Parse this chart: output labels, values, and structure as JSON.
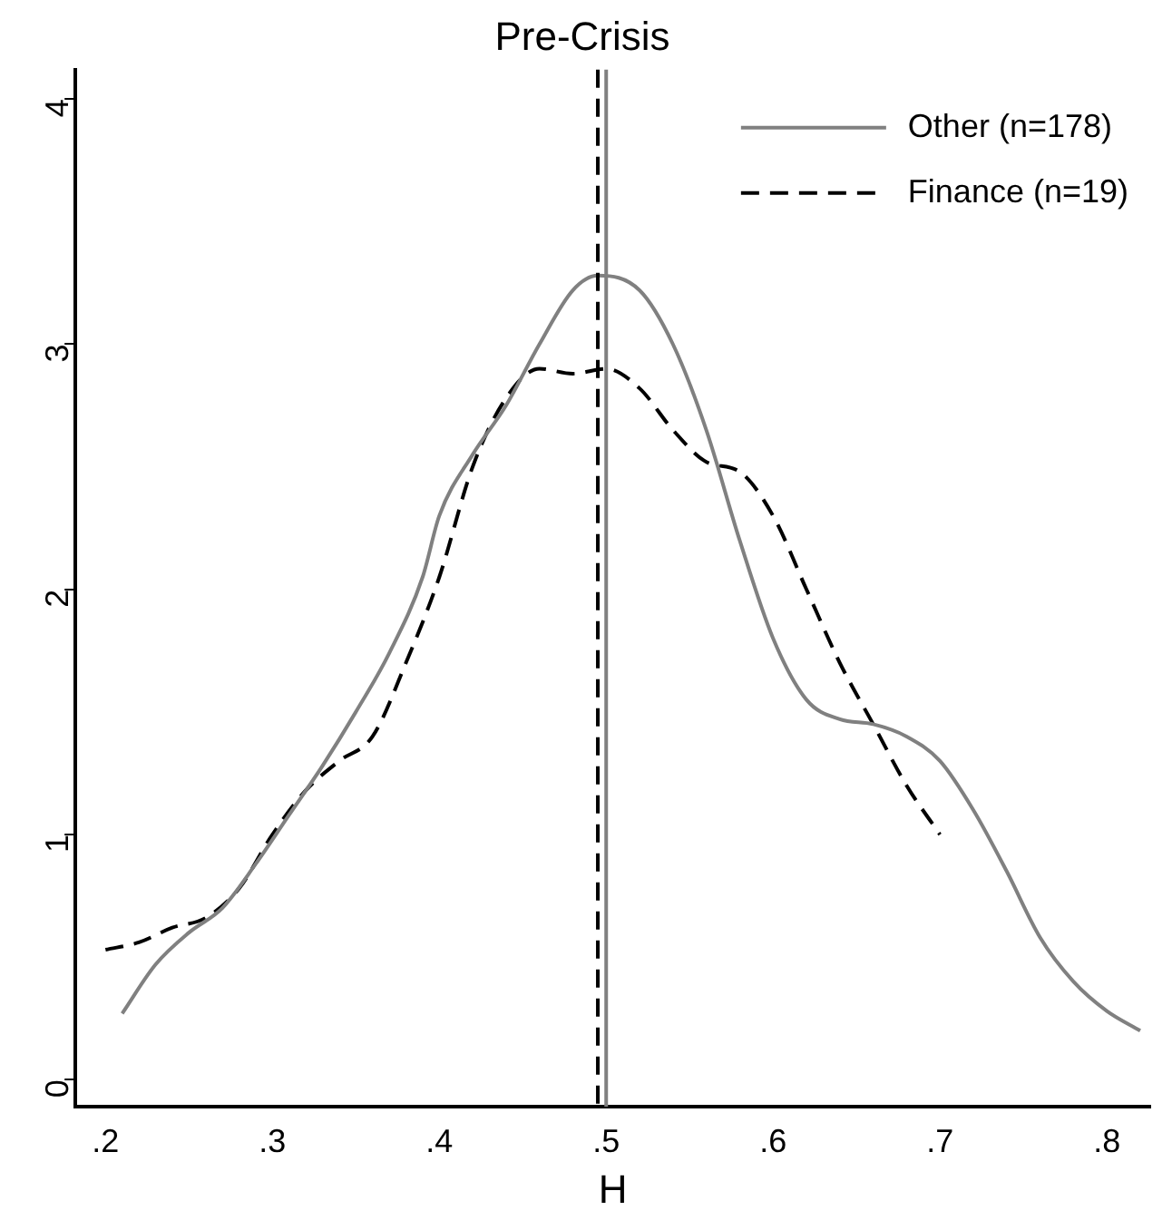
{
  "chart_data": {
    "type": "line",
    "title": "Pre-Crisis",
    "xlabel": "H",
    "xlim": [
      0.182,
      0.826
    ],
    "xticks": [
      {
        "value": 0.2,
        "label": ".2"
      },
      {
        "value": 0.3,
        "label": ".3"
      },
      {
        "value": 0.4,
        "label": ".4"
      },
      {
        "value": 0.5,
        "label": ".5"
      },
      {
        "value": 0.6,
        "label": ".6"
      },
      {
        "value": 0.7,
        "label": ".7"
      },
      {
        "value": 0.8,
        "label": ".8"
      }
    ],
    "ylim": [
      -0.11,
      4.12
    ],
    "yticks": [
      0,
      1,
      2,
      3,
      4
    ],
    "grid": false,
    "legend": "top right",
    "marker": "none",
    "series": [
      {
        "name": "Other (n=178)",
        "color": "#808080",
        "line_style": "solid",
        "x": [
          0.21,
          0.23,
          0.25,
          0.27,
          0.29,
          0.31,
          0.33,
          0.35,
          0.37,
          0.39,
          0.4,
          0.42,
          0.44,
          0.46,
          0.48,
          0.495,
          0.52,
          0.54,
          0.56,
          0.58,
          0.6,
          0.62,
          0.64,
          0.66,
          0.68,
          0.7,
          0.72,
          0.74,
          0.76,
          0.78,
          0.8,
          0.82
        ],
        "values": [
          0.27,
          0.47,
          0.6,
          0.7,
          0.88,
          1.08,
          1.28,
          1.5,
          1.74,
          2.05,
          2.3,
          2.55,
          2.75,
          3.0,
          3.22,
          3.28,
          3.22,
          3.0,
          2.65,
          2.2,
          1.8,
          1.55,
          1.47,
          1.45,
          1.4,
          1.3,
          1.1,
          0.85,
          0.58,
          0.4,
          0.28,
          0.2
        ]
      },
      {
        "name": "Finance (n=19)",
        "color": "#000000",
        "line_style": "dashed",
        "x": [
          0.2,
          0.22,
          0.24,
          0.26,
          0.28,
          0.3,
          0.32,
          0.34,
          0.36,
          0.38,
          0.4,
          0.42,
          0.44,
          0.46,
          0.48,
          0.5,
          0.52,
          0.54,
          0.56,
          0.58,
          0.6,
          0.62,
          0.64,
          0.66,
          0.68,
          0.7
        ],
        "values": [
          0.53,
          0.56,
          0.62,
          0.66,
          0.78,
          1.0,
          1.18,
          1.3,
          1.4,
          1.7,
          2.05,
          2.5,
          2.78,
          2.9,
          2.88,
          2.9,
          2.82,
          2.65,
          2.52,
          2.48,
          2.3,
          2.0,
          1.7,
          1.45,
          1.2,
          1.0
        ]
      }
    ],
    "ref_lines": [
      {
        "axis": "x",
        "value": 0.495,
        "color": "#000000",
        "line_style": "dashed"
      },
      {
        "axis": "x",
        "value": 0.5,
        "color": "#808080",
        "line_style": "solid"
      }
    ]
  }
}
